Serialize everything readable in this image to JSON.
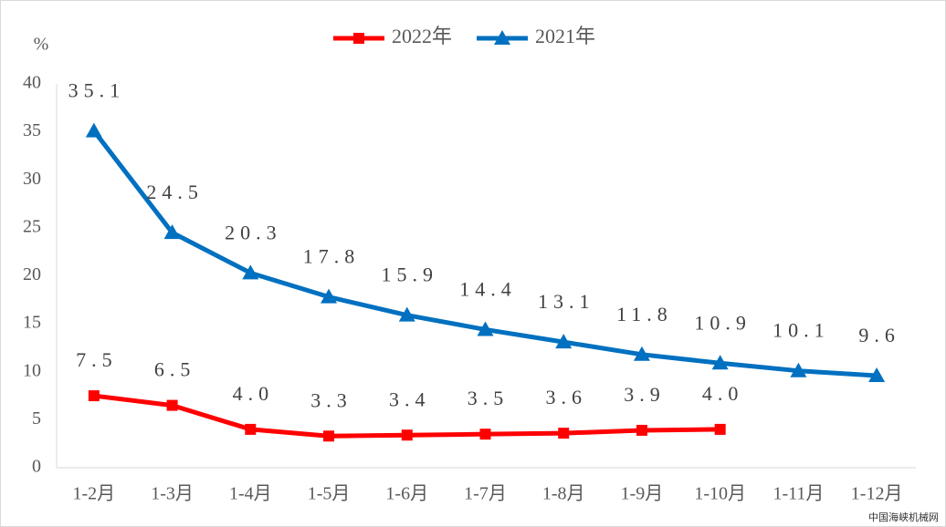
{
  "chart_data": {
    "type": "line",
    "y_label": "%",
    "categories": [
      "1-2月",
      "1-3月",
      "1-4月",
      "1-5月",
      "1-6月",
      "1-7月",
      "1-8月",
      "1-9月",
      "1-10月",
      "1-11月",
      "1-12月"
    ],
    "series": [
      {
        "name": "2022年",
        "color": "#ff0000",
        "marker": "square",
        "values": [
          7.5,
          6.5,
          4.0,
          3.3,
          3.4,
          3.5,
          3.6,
          3.9,
          4.0,
          null,
          null
        ],
        "value_labels": [
          "7.5",
          "6.5",
          "4.0",
          "3.3",
          "3.4",
          "3.5",
          "3.6",
          "3.9",
          "4.0",
          null,
          null
        ]
      },
      {
        "name": "2021年",
        "color": "#0070c0",
        "marker": "triangle",
        "values": [
          35.1,
          24.5,
          20.3,
          17.8,
          15.9,
          14.4,
          13.1,
          11.8,
          10.9,
          10.1,
          9.6
        ],
        "value_labels": [
          "35.1",
          "24.5",
          "20.3",
          "17.8",
          "15.9",
          "14.4",
          "13.1",
          "11.8",
          "10.9",
          "10.1",
          "9.6"
        ]
      }
    ],
    "ylim": [
      0,
      40
    ],
    "yticks": [
      0,
      5,
      10,
      15,
      20,
      25,
      30,
      35,
      40
    ],
    "grid": false,
    "legend": "top",
    "watermark": "中国海峡机械网"
  }
}
